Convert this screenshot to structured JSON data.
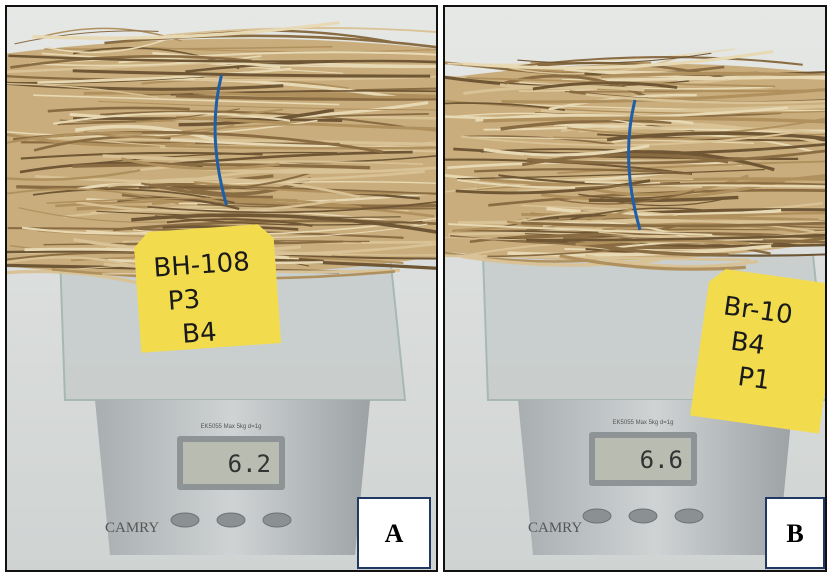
{
  "panels": [
    {
      "label": "A",
      "tag": [
        "BH-108",
        "P3",
        "B4"
      ],
      "display": "6.2",
      "model": "EK5055 Max 5kg d=1g",
      "brand": "CAMRY"
    },
    {
      "label": "B",
      "tag": [
        "Br-10",
        "B4",
        "P1"
      ],
      "display": "6.6",
      "model": "EK5055 Max 5kg d=1g",
      "brand": "CAMRY"
    }
  ]
}
